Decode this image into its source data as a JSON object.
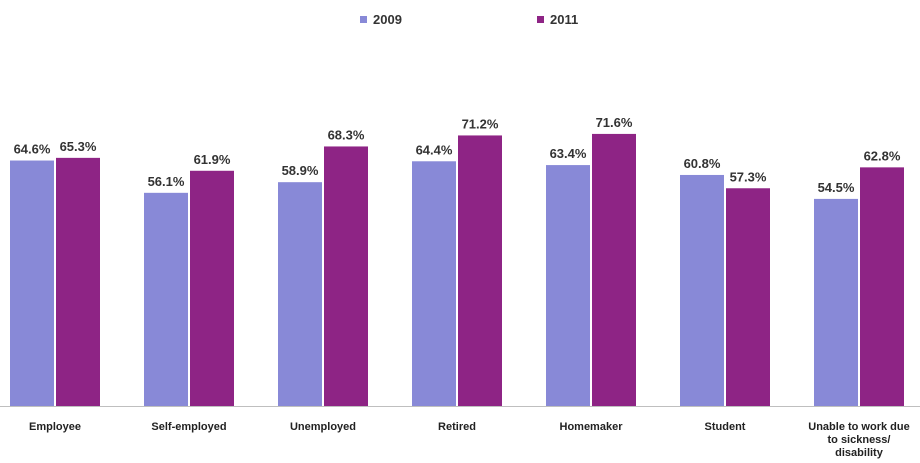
{
  "chart_data": {
    "type": "bar",
    "categories": [
      "Employee",
      "Self-employed",
      "Unemployed",
      "Retired",
      "Homemaker",
      "Student",
      "Unable to work due to sickness/ disability"
    ],
    "category_lines": [
      [
        "Employee"
      ],
      [
        "Self-employed"
      ],
      [
        "Unemployed"
      ],
      [
        "Retired"
      ],
      [
        "Homemaker"
      ],
      [
        "Student"
      ],
      [
        "Unable to work due",
        "to sickness/",
        "disability"
      ]
    ],
    "series": [
      {
        "name": "2009",
        "color": "#8889D7",
        "values": [
          64.6,
          56.1,
          58.9,
          64.4,
          63.4,
          60.8,
          54.5
        ],
        "labels": [
          "64.6%",
          "56.1%",
          "58.9%",
          "64.4%",
          "63.4%",
          "60.8%",
          "54.5%"
        ]
      },
      {
        "name": "2011",
        "color": "#8E2485",
        "values": [
          65.3,
          61.9,
          68.3,
          71.2,
          71.6,
          57.3,
          62.8
        ],
        "labels": [
          "65.3%",
          "61.9%",
          "68.3%",
          "71.2%",
          "71.6%",
          "57.3%",
          "62.8%"
        ]
      }
    ],
    "title": "",
    "xlabel": "",
    "ylabel": "",
    "ylim": [
      0,
      100
    ],
    "grid": false,
    "legend_position": "top-center",
    "value_suffix": "%"
  }
}
